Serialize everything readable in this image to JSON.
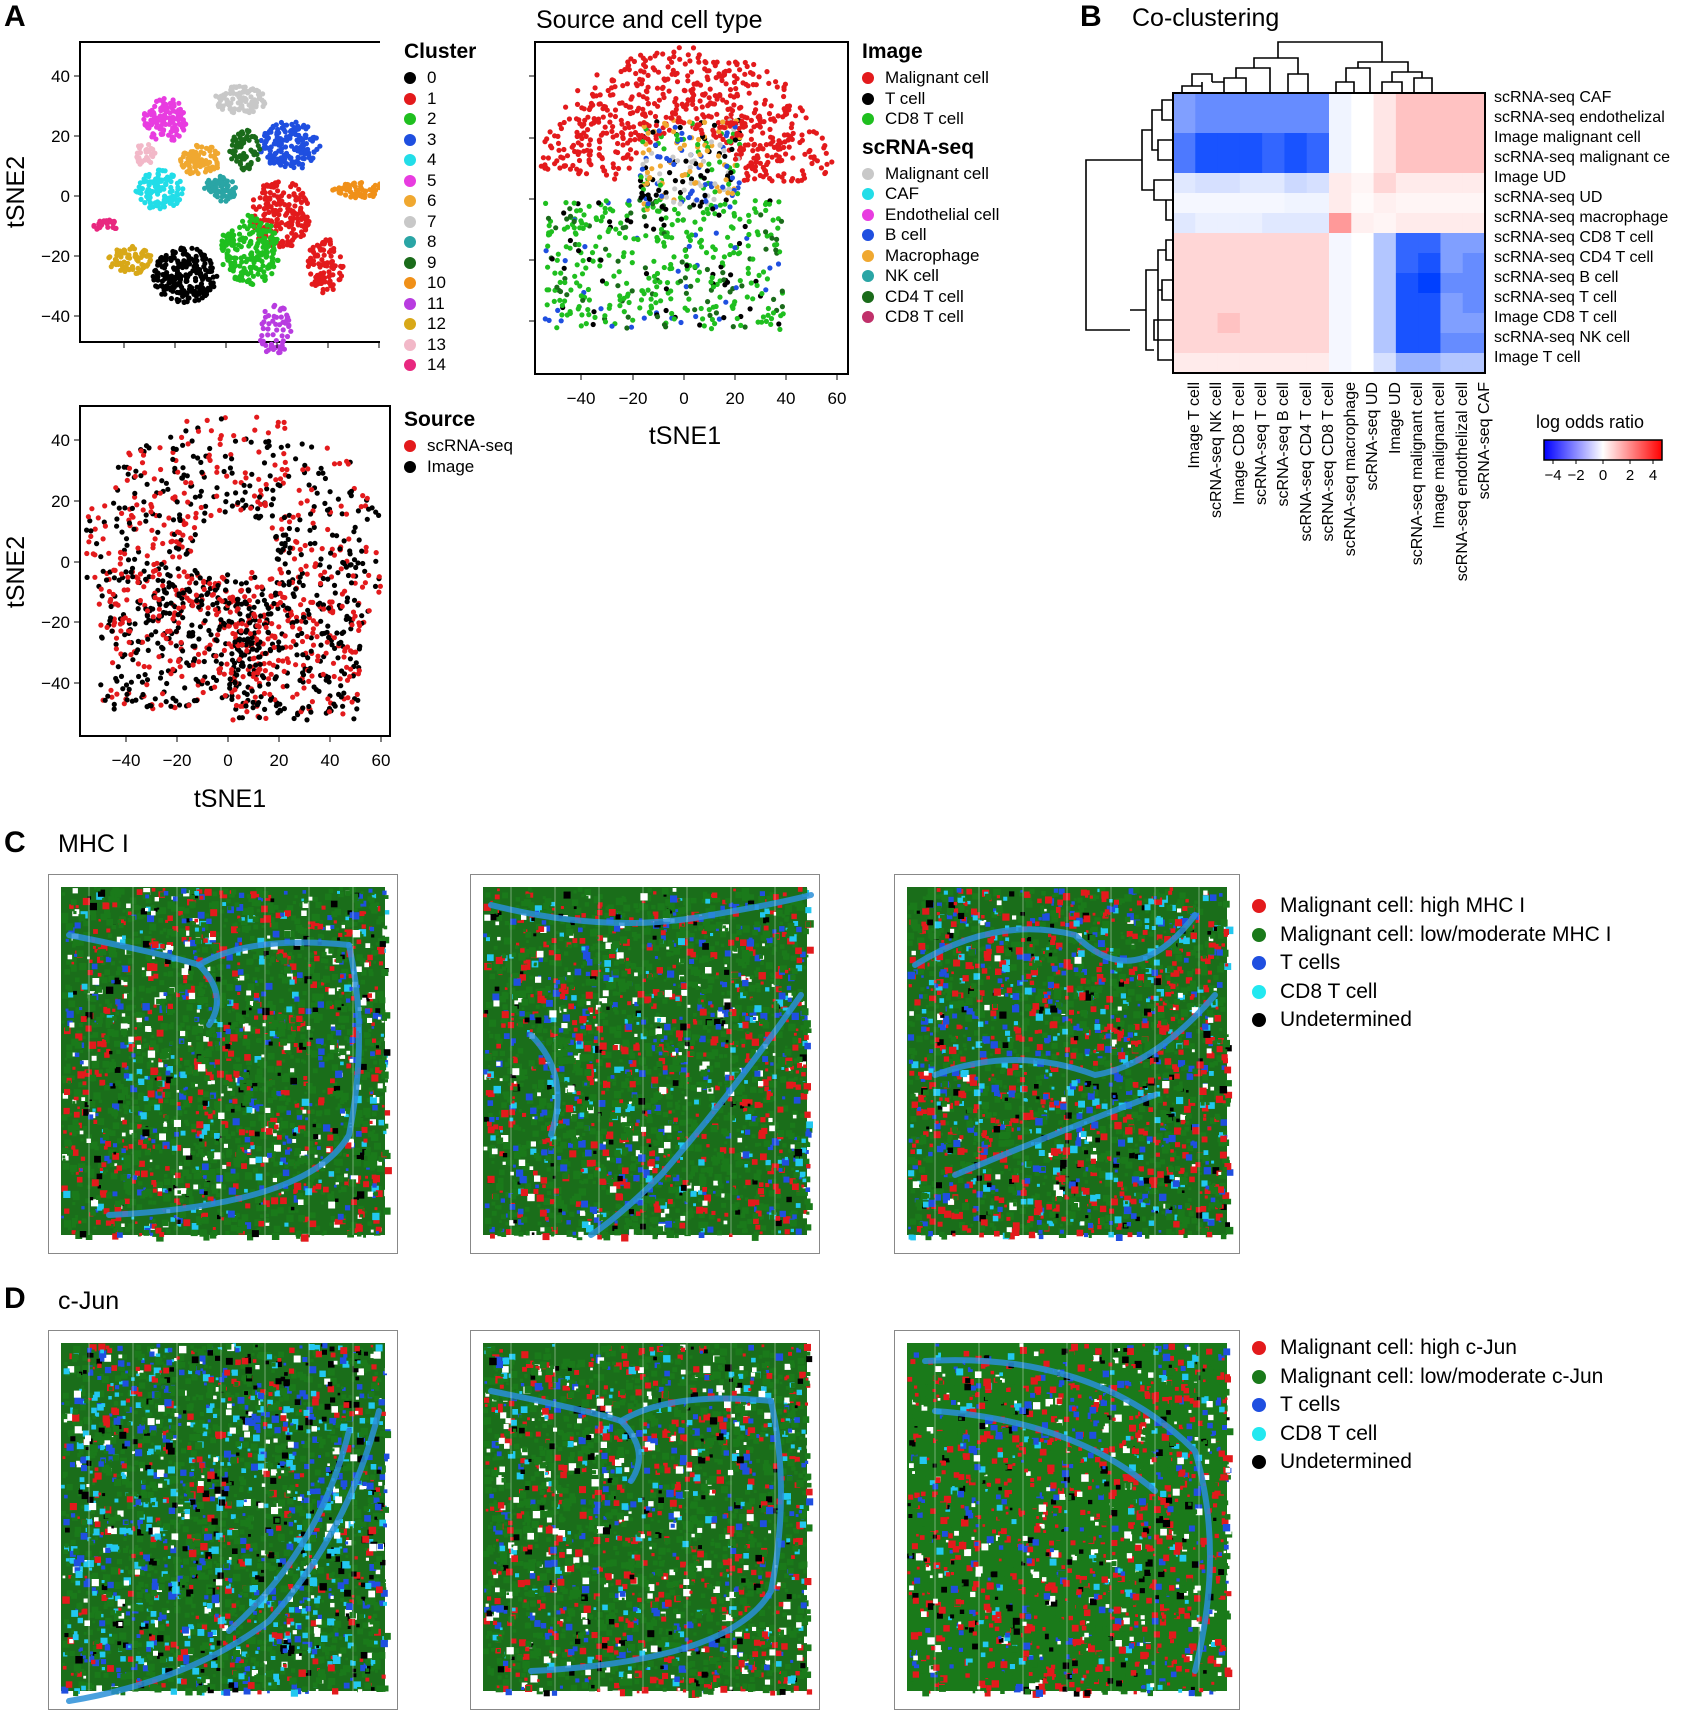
{
  "panels": {
    "a_letter": "A",
    "b_letter": "B",
    "c_letter": "C",
    "d_letter": "D"
  },
  "tsne": {
    "xlabel": "tSNE1",
    "ylabel": "tSNE2",
    "xticks": [
      "−40",
      "−20",
      "0",
      "20",
      "40",
      "60"
    ],
    "yticks": [
      "40",
      "20",
      "0",
      "−20",
      "−40"
    ],
    "middle_title": "Source and cell type"
  },
  "cluster_legend": {
    "title": "Cluster",
    "items": [
      {
        "label": "0",
        "color": "#000000"
      },
      {
        "label": "1",
        "color": "#e31a1c"
      },
      {
        "label": "2",
        "color": "#1fbf1f"
      },
      {
        "label": "3",
        "color": "#1f4fe0"
      },
      {
        "label": "4",
        "color": "#22dde8"
      },
      {
        "label": "5",
        "color": "#e83ce0"
      },
      {
        "label": "6",
        "color": "#f0a830"
      },
      {
        "label": "7",
        "color": "#c8c8c8"
      },
      {
        "label": "8",
        "color": "#2aa5a5"
      },
      {
        "label": "9",
        "color": "#1a6b1a"
      },
      {
        "label": "10",
        "color": "#f09018"
      },
      {
        "label": "11",
        "color": "#b83ce0"
      },
      {
        "label": "12",
        "color": "#d8a818"
      },
      {
        "label": "13",
        "color": "#f2b8c8"
      },
      {
        "label": "14",
        "color": "#e8287f"
      }
    ]
  },
  "source_legend": {
    "title": "Source",
    "items": [
      {
        "label": "scRNA-seq",
        "color": "#e31a1c"
      },
      {
        "label": "Image",
        "color": "#000000"
      }
    ]
  },
  "celltype_legend": {
    "image_title": "Image",
    "image_items": [
      {
        "label": "Malignant cell",
        "color": "#e31a1c"
      },
      {
        "label": "T cell",
        "color": "#000000"
      },
      {
        "label": "CD8 T cell",
        "color": "#1fbf1f"
      }
    ],
    "scrna_title": "scRNA-seq",
    "scrna_items": [
      {
        "label": "Malignant cell",
        "color": "#c8c8c8"
      },
      {
        "label": "CAF",
        "color": "#22dde8"
      },
      {
        "label": "Endothelial cell",
        "color": "#e83ce0"
      },
      {
        "label": "B cell",
        "color": "#1f4fe0"
      },
      {
        "label": "Macrophage",
        "color": "#f0a830"
      },
      {
        "label": "NK cell",
        "color": "#2aa5a5"
      },
      {
        "label": "CD4 T cell",
        "color": "#1a6b1a"
      },
      {
        "label": "CD8 T cell",
        "color": "#c0306a"
      }
    ]
  },
  "heatmap": {
    "title": "Co-clustering",
    "row_labels": [
      "scRNA-seq CAF",
      "scRNA-seq endothelizal",
      "Image malignant cell",
      "scRNA-seq malignant ce",
      "Image UD",
      "scRNA-seq UD",
      "scRNA-seq macrophage",
      "scRNA-seq CD8 T cell",
      "scRNA-seq CD4 T cell",
      "scRNA-seq B cell",
      "scRNA-seq T cell",
      "Image CD8 T cell",
      "scRNA-seq NK cell",
      "Image T cell"
    ],
    "col_labels": [
      "Image T cell",
      "scRNA-seq NK cell",
      "Image CD8 T cell",
      "scRNA-seq T cell",
      "scRNA-seq B cell",
      "scRNA-seq CD4 T cell",
      "scRNA-seq CD8 T cell",
      "scRNA-seq macrophage",
      "scRNA-seq UD",
      "Image UD",
      "scRNA-seq malignant cell",
      "Image malignant cell",
      "scRNA-seq endothelizal cell",
      "scRNA-seq CAF"
    ],
    "colorbar_title": "log odds ratio",
    "colorbar_ticks": [
      "−4",
      "−2",
      "0",
      "2",
      "4"
    ],
    "values": [
      [
        -2.5,
        -3.0,
        -3.0,
        -3.0,
        -3.0,
        -3.0,
        -3.0,
        -0.3,
        0.0,
        0.5,
        1.2,
        1.2,
        1.2,
        1.2
      ],
      [
        -2.5,
        -3.0,
        -3.0,
        -3.0,
        -3.0,
        -3.0,
        -3.0,
        -0.3,
        0.0,
        0.5,
        1.2,
        1.2,
        1.2,
        1.2
      ],
      [
        -3.5,
        -4.5,
        -4.5,
        -4.5,
        -4.0,
        -4.5,
        -4.0,
        -0.3,
        0.0,
        0.5,
        1.2,
        1.2,
        1.2,
        1.2
      ],
      [
        -3.5,
        -4.5,
        -4.5,
        -4.5,
        -4.0,
        -4.5,
        -4.0,
        -0.3,
        0.0,
        0.5,
        1.2,
        1.2,
        1.2,
        1.2
      ],
      [
        -0.6,
        -0.8,
        -0.8,
        -0.6,
        -0.6,
        -1.0,
        -0.8,
        0.4,
        0.2,
        0.8,
        0.4,
        0.4,
        0.4,
        0.4
      ],
      [
        -0.2,
        -0.2,
        -0.2,
        -0.2,
        -0.2,
        -0.3,
        -0.3,
        0.4,
        0.1,
        0.3,
        0.2,
        0.2,
        0.2,
        0.2
      ],
      [
        -0.6,
        -0.4,
        -0.4,
        -0.4,
        -0.6,
        -0.6,
        -0.6,
        2.0,
        0.3,
        0.2,
        0.4,
        0.4,
        0.4,
        0.4
      ],
      [
        0.8,
        0.8,
        0.8,
        0.8,
        0.8,
        0.8,
        0.8,
        -0.2,
        0.0,
        -1.5,
        -4.0,
        -4.0,
        -2.5,
        -2.5
      ],
      [
        0.8,
        0.8,
        0.8,
        0.8,
        0.8,
        0.8,
        0.8,
        -0.2,
        0.0,
        -1.5,
        -4.0,
        -4.5,
        -2.5,
        -3.0
      ],
      [
        0.8,
        0.8,
        0.8,
        0.8,
        0.8,
        0.8,
        0.8,
        -0.2,
        0.0,
        -1.5,
        -4.5,
        -5.0,
        -3.0,
        -3.0
      ],
      [
        0.8,
        0.8,
        0.8,
        0.8,
        0.8,
        0.8,
        0.8,
        -0.2,
        0.0,
        -1.5,
        -4.5,
        -4.5,
        -2.5,
        -3.0
      ],
      [
        0.8,
        0.8,
        1.2,
        0.8,
        0.8,
        0.8,
        0.8,
        -0.2,
        0.0,
        -1.5,
        -4.5,
        -4.5,
        -2.5,
        -2.5
      ],
      [
        0.8,
        0.8,
        0.8,
        0.8,
        0.8,
        0.8,
        0.8,
        -0.2,
        0.0,
        -1.5,
        -4.5,
        -4.5,
        -3.0,
        -3.0
      ],
      [
        0.4,
        0.4,
        0.4,
        0.4,
        0.4,
        0.4,
        0.4,
        -0.2,
        0.0,
        -0.8,
        -2.0,
        -2.0,
        -1.5,
        -1.5
      ]
    ]
  },
  "panel_c": {
    "title": "MHC I",
    "legend": [
      {
        "label": "Malignant cell: high MHC I",
        "color": "#e31a1c"
      },
      {
        "label": "Malignant cell: low/moderate MHC I",
        "color": "#1a7a1a"
      },
      {
        "label": "T cells",
        "color": "#1f4fe0"
      },
      {
        "label": "CD8 T cell",
        "color": "#22e8f0"
      },
      {
        "label": "Undetermined",
        "color": "#000000"
      }
    ]
  },
  "panel_d": {
    "title": "c-Jun",
    "legend": [
      {
        "label": "Malignant cell: high c-Jun",
        "color": "#e31a1c"
      },
      {
        "label": "Malignant cell: low/moderate c-Jun",
        "color": "#1a7a1a"
      },
      {
        "label": "T cells",
        "color": "#1f4fe0"
      },
      {
        "label": "CD8 T cell",
        "color": "#22e8f0"
      },
      {
        "label": "Undetermined",
        "color": "#000000"
      }
    ]
  }
}
